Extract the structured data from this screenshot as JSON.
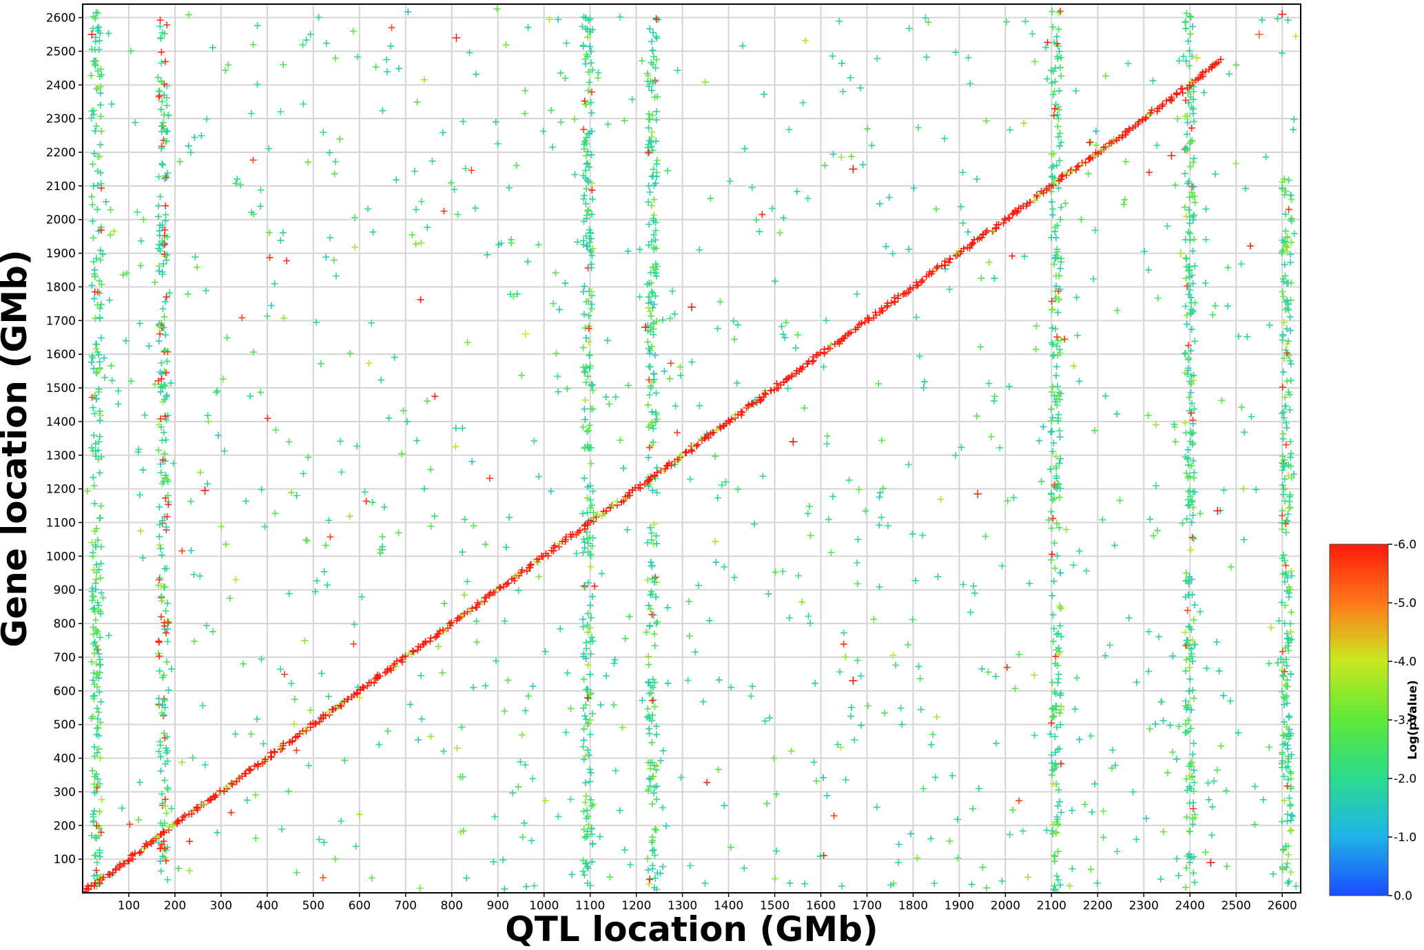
{
  "chart_data": {
    "type": "scatter",
    "marker": "plus",
    "xlabel": "QTL location (GMb)",
    "ylabel": "Gene location (GMb)",
    "xlim": [
      0,
      2640
    ],
    "ylim": [
      0,
      2640
    ],
    "xticks": [
      100,
      200,
      300,
      400,
      500,
      600,
      700,
      800,
      900,
      1000,
      1100,
      1200,
      1300,
      1400,
      1500,
      1600,
      1700,
      1800,
      1900,
      2000,
      2100,
      2200,
      2300,
      2400,
      2500,
      2600
    ],
    "yticks": [
      100,
      200,
      300,
      400,
      500,
      600,
      700,
      800,
      900,
      1000,
      1100,
      1200,
      1300,
      1400,
      1500,
      1600,
      1700,
      1800,
      1900,
      2000,
      2100,
      2200,
      2300,
      2400,
      2500,
      2600
    ],
    "xtick_labels": [
      "100",
      "200",
      "300",
      "400",
      "500",
      "600",
      "700",
      "800",
      "900",
      "1000",
      "1100",
      "1200",
      "1300",
      "1400",
      "1500",
      "1600",
      "1700",
      "1800",
      "1900",
      "2000",
      "2100",
      "2200",
      "2300",
      "2400",
      "2500",
      "2600"
    ],
    "ytick_labels": [
      "100",
      "200",
      "300",
      "400",
      "500",
      "600",
      "700",
      "800",
      "900",
      "1000",
      "1100",
      "1200",
      "1300",
      "1400",
      "1500",
      "1600",
      "1700",
      "1800",
      "1900",
      "2000",
      "2100",
      "2200",
      "2300",
      "2400",
      "2500",
      "2600"
    ],
    "grid": true,
    "colorbar": {
      "title": "Log(pValue)",
      "range": [
        -6.0,
        0.0
      ],
      "ticks": [
        -6,
        -5,
        -4,
        -3,
        -2,
        -1,
        0
      ],
      "tick_labels": [
        "-6.0",
        "-5.0",
        "-4.0",
        "-3.0",
        "-2.0",
        "-1.0",
        "0.0"
      ]
    },
    "diagonal_band": [
      {
        "x": 0,
        "y": 0
      },
      {
        "x": 100,
        "y": 100
      },
      {
        "x": 200,
        "y": 205
      },
      {
        "x": 300,
        "y": 300
      },
      {
        "x": 400,
        "y": 400
      },
      {
        "x": 500,
        "y": 500
      },
      {
        "x": 600,
        "y": 600
      },
      {
        "x": 700,
        "y": 700
      },
      {
        "x": 800,
        "y": 800
      },
      {
        "x": 900,
        "y": 900
      },
      {
        "x": 1000,
        "y": 1000
      },
      {
        "x": 1100,
        "y": 1100
      },
      {
        "x": 1200,
        "y": 1200
      },
      {
        "x": 1280,
        "y": 1280
      },
      {
        "x": 1320,
        "y": 1320
      },
      {
        "x": 1400,
        "y": 1400
      },
      {
        "x": 1500,
        "y": 1500
      },
      {
        "x": 1600,
        "y": 1600
      },
      {
        "x": 1700,
        "y": 1700
      },
      {
        "x": 1800,
        "y": 1800
      },
      {
        "x": 1900,
        "y": 1900
      },
      {
        "x": 2000,
        "y": 2000
      },
      {
        "x": 2100,
        "y": 2100
      },
      {
        "x": 2200,
        "y": 2200
      },
      {
        "x": 2300,
        "y": 2300
      },
      {
        "x": 2400,
        "y": 2400
      },
      {
        "x": 2470,
        "y": 2480
      }
    ],
    "vertical_stripes": [
      {
        "x": 30,
        "y_range": [
          0,
          2620
        ]
      },
      {
        "x": 175,
        "y_range": [
          0,
          2620
        ]
      },
      {
        "x": 1095,
        "y_range": [
          0,
          2620
        ]
      },
      {
        "x": 1235,
        "y_range": [
          0,
          2600
        ]
      },
      {
        "x": 2110,
        "y_range": [
          0,
          2620
        ]
      },
      {
        "x": 2400,
        "y_range": [
          0,
          2620
        ]
      },
      {
        "x": 2610,
        "y_range": [
          0,
          2140
        ]
      }
    ],
    "highlighted_points": [
      {
        "x": 2600,
        "y": 2610,
        "logp": -6.0
      },
      {
        "x": 2550,
        "y": 2550,
        "logp": -5.2
      },
      {
        "x": 265,
        "y": 1195,
        "logp": -6.0
      },
      {
        "x": 1320,
        "y": 1740,
        "logp": -6.0
      },
      {
        "x": 1220,
        "y": 1680,
        "logp": -6.0
      },
      {
        "x": 1940,
        "y": 1185,
        "logp": -5.8
      },
      {
        "x": 2460,
        "y": 1135,
        "logp": -6.0
      },
      {
        "x": 1540,
        "y": 1340,
        "logp": -6.0
      },
      {
        "x": 20,
        "y": 2550,
        "logp": -6.0
      },
      {
        "x": 810,
        "y": 2540,
        "logp": -6.0
      },
      {
        "x": 1670,
        "y": 630,
        "logp": -6.0
      },
      {
        "x": 1670,
        "y": 2150,
        "logp": -6.0
      },
      {
        "x": 2360,
        "y": 2190,
        "logp": -6.0
      },
      {
        "x": 2445,
        "y": 90,
        "logp": -6.0
      },
      {
        "x": 2415,
        "y": 2480,
        "logp": -4.2
      },
      {
        "x": 960,
        "y": 1660,
        "logp": -4.0
      },
      {
        "x": 2380,
        "y": 1900,
        "logp": -3.5
      }
    ]
  }
}
